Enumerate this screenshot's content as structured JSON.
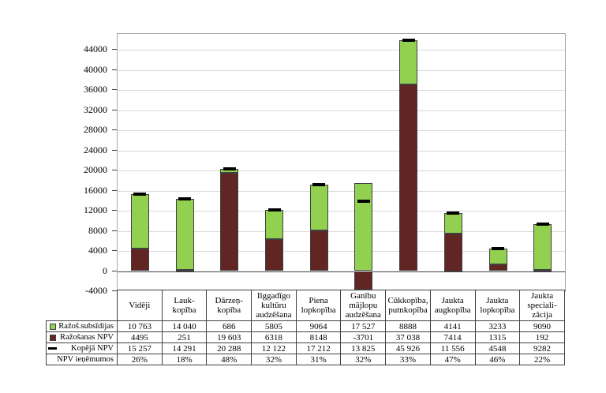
{
  "colors": {
    "green": "#92d050",
    "dark_red": "#612524",
    "marker_black": "#000000",
    "bar_border": "#404040",
    "grid": "#d9d9d9",
    "plot_frame": "#a6a6a6",
    "zero_axis": "#404040",
    "table_border": "#404040"
  },
  "chart_data": {
    "type": "bar",
    "stacked": true,
    "title": "",
    "xlabel": "",
    "ylabel": "",
    "grid": true,
    "legend_position": "table-left",
    "categories": [
      "Vidēji",
      "Laukkopība",
      "Dārzeņkopība",
      "Ilggadīgo kultūru audzēšana",
      "Piena lopkopība",
      "Ganību mājlopu audzēšana",
      "Cūkkopība, putnkopība",
      "Jaukta augkopība",
      "Jaukta lopkopība",
      "Jaukta specializācija"
    ],
    "series": [
      {
        "name": "Ražoš.subsīdijas",
        "kind": "bar-top",
        "color_key": "green",
        "values": [
          10763,
          14040,
          686,
          5805,
          9064,
          17527,
          8888,
          4141,
          3233,
          9090
        ]
      },
      {
        "name": "Ražošanas NPV",
        "kind": "bar-base",
        "color_key": "dark_red",
        "values": [
          4495,
          251,
          19603,
          6318,
          8148,
          -3701,
          37038,
          7414,
          1315,
          192
        ]
      },
      {
        "name": "Kopējā NPV",
        "kind": "marker",
        "color_key": "marker_black",
        "values": [
          15257,
          14291,
          20288,
          12122,
          17212,
          13825,
          45926,
          11556,
          4548,
          9282
        ]
      }
    ],
    "ylim": [
      -4000,
      47150
    ],
    "yticks": [
      -4000,
      0,
      4000,
      8000,
      12000,
      16000,
      20000,
      24000,
      28000,
      32000,
      36000,
      40000,
      44000
    ]
  },
  "table": {
    "column_headers": [
      "Vidēji",
      "Lauk-\nkopība",
      "Dārzeņ-\nkopība",
      "Ilggadīgo\nkultūru\naudzēšana",
      "Piena\nlopkopība",
      "Ganību\nmājlopu\naudzēšana",
      "Cūkkopība,\nputnkopība",
      "Jaukta\naugkopība",
      "Jaukta\nlopkopība",
      "Jaukta\nspeciali-\nzācija"
    ],
    "rows": [
      {
        "label": "Ražoš.subsīdijas",
        "key": "square-green",
        "cells": [
          "10 763",
          "14 040",
          "686",
          "5805",
          "9064",
          "17 527",
          "8888",
          "4141",
          "3233",
          "9090"
        ]
      },
      {
        "label": "Ražošanas NPV",
        "key": "square-red",
        "cells": [
          "4495",
          "251",
          "19 603",
          "6318",
          "8148",
          "-3701",
          "37 038",
          "7414",
          "1315",
          "192"
        ]
      },
      {
        "label": "Kopējā NPV",
        "key": "dash",
        "cells": [
          "15 257",
          "14 291",
          "20 288",
          "12 122",
          "17 212",
          "13 825",
          "45 926",
          "11 556",
          "4548",
          "9282"
        ]
      },
      {
        "label": "NPV ieņēmumos",
        "key": "none",
        "cells": [
          "26%",
          "18%",
          "48%",
          "32%",
          "31%",
          "32%",
          "33%",
          "47%",
          "46%",
          "22%"
        ]
      }
    ]
  }
}
